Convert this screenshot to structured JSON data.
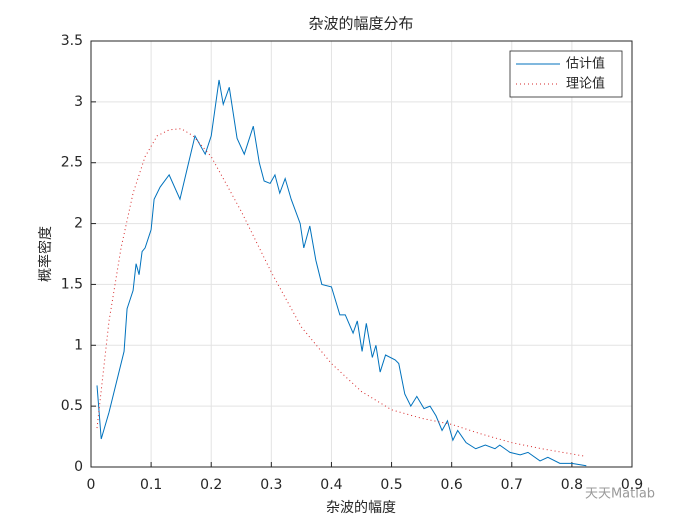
{
  "chart_data": {
    "type": "line",
    "title": "杂波的幅度分布",
    "xlabel": "杂波的幅度",
    "ylabel": "概率密度",
    "watermark": "天天Matlab",
    "xlim": [
      0,
      0.9
    ],
    "xticks": [
      0,
      0.1,
      0.2,
      0.3,
      0.4,
      0.5,
      0.6,
      0.7,
      0.8,
      0.9
    ],
    "ylim": [
      0,
      3.5
    ],
    "yticks": [
      0,
      0.5,
      1,
      1.5,
      2,
      2.5,
      3,
      3.5
    ],
    "grid": true,
    "legend": "upper right",
    "series": [
      {
        "name": "估计值",
        "color": "#0072bd",
        "style": "solid",
        "x": [
          0.01,
          0.017,
          0.03,
          0.045,
          0.055,
          0.06,
          0.07,
          0.075,
          0.08,
          0.085,
          0.09,
          0.1,
          0.105,
          0.115,
          0.13,
          0.148,
          0.16,
          0.173,
          0.19,
          0.2,
          0.213,
          0.22,
          0.23,
          0.243,
          0.255,
          0.27,
          0.28,
          0.288,
          0.298,
          0.306,
          0.314,
          0.323,
          0.333,
          0.348,
          0.354,
          0.364,
          0.374,
          0.384,
          0.4,
          0.414,
          0.423,
          0.436,
          0.443,
          0.451,
          0.458,
          0.468,
          0.474,
          0.481,
          0.49,
          0.506,
          0.512,
          0.522,
          0.532,
          0.542,
          0.554,
          0.564,
          0.574,
          0.584,
          0.593,
          0.602,
          0.61,
          0.624,
          0.64,
          0.656,
          0.672,
          0.68,
          0.697,
          0.714,
          0.727,
          0.747,
          0.76,
          0.78,
          0.8,
          0.824
        ],
        "values": [
          0.67,
          0.23,
          0.45,
          0.75,
          0.95,
          1.3,
          1.45,
          1.67,
          1.58,
          1.77,
          1.8,
          1.95,
          2.2,
          2.3,
          2.4,
          2.2,
          2.45,
          2.72,
          2.57,
          2.72,
          3.18,
          2.98,
          3.12,
          2.7,
          2.57,
          2.8,
          2.5,
          2.35,
          2.33,
          2.4,
          2.25,
          2.37,
          2.2,
          2.0,
          1.8,
          1.98,
          1.7,
          1.5,
          1.48,
          1.25,
          1.25,
          1.1,
          1.2,
          0.95,
          1.18,
          0.9,
          1.0,
          0.78,
          0.92,
          0.88,
          0.85,
          0.6,
          0.5,
          0.58,
          0.48,
          0.5,
          0.42,
          0.3,
          0.38,
          0.22,
          0.3,
          0.2,
          0.15,
          0.18,
          0.15,
          0.18,
          0.12,
          0.1,
          0.12,
          0.05,
          0.08,
          0.03,
          0.03,
          0.01
        ]
      },
      {
        "name": "理论值",
        "color": "#d62728",
        "style": "dotted",
        "x": [
          0.01,
          0.03,
          0.05,
          0.07,
          0.09,
          0.11,
          0.13,
          0.15,
          0.17,
          0.2,
          0.25,
          0.3,
          0.35,
          0.4,
          0.45,
          0.5,
          0.55,
          0.6,
          0.65,
          0.7,
          0.75,
          0.82
        ],
        "values": [
          0.32,
          1.2,
          1.8,
          2.25,
          2.55,
          2.72,
          2.77,
          2.78,
          2.72,
          2.55,
          2.1,
          1.6,
          1.15,
          0.85,
          0.62,
          0.47,
          0.4,
          0.35,
          0.27,
          0.2,
          0.15,
          0.09
        ]
      }
    ]
  }
}
